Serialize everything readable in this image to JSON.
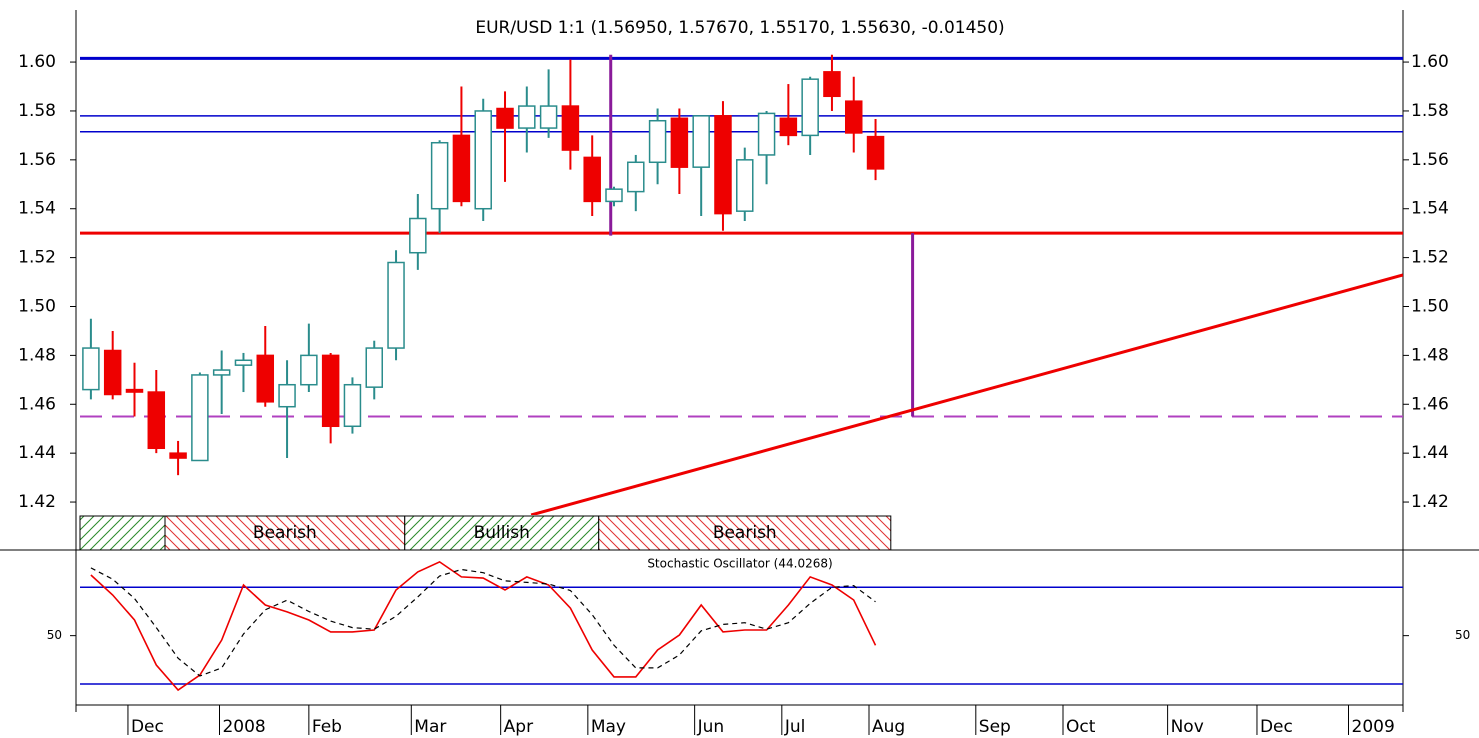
{
  "chart_data": [
    {
      "type": "candlestick",
      "title": "EUR/USD 1:1 (1.56950, 1.57670, 1.55170, 1.55630, -0.01450)",
      "open": [
        1.466,
        1.482,
        1.466,
        1.465,
        1.44,
        1.437,
        1.472,
        1.476,
        1.48,
        1.459,
        1.468,
        1.48,
        1.451,
        1.467,
        1.483,
        1.522,
        1.54,
        1.57,
        1.54,
        1.581,
        1.573,
        1.573,
        1.582,
        1.561,
        1.543,
        1.547,
        1.559,
        1.577,
        1.557,
        1.578,
        1.539,
        1.562,
        1.577,
        1.57,
        1.596,
        1.584,
        1.5695
      ],
      "high": [
        1.495,
        1.49,
        1.477,
        1.474,
        1.445,
        1.473,
        1.482,
        1.481,
        1.492,
        1.478,
        1.493,
        1.481,
        1.471,
        1.486,
        1.523,
        1.546,
        1.568,
        1.59,
        1.585,
        1.588,
        1.59,
        1.597,
        1.601,
        1.57,
        1.549,
        1.562,
        1.581,
        1.581,
        1.578,
        1.584,
        1.565,
        1.58,
        1.591,
        1.594,
        1.603,
        1.594,
        1.5767
      ],
      "low": [
        1.462,
        1.462,
        1.455,
        1.44,
        1.431,
        1.437,
        1.456,
        1.465,
        1.459,
        1.438,
        1.465,
        1.444,
        1.448,
        1.462,
        1.478,
        1.515,
        1.53,
        1.541,
        1.535,
        1.551,
        1.563,
        1.569,
        1.556,
        1.537,
        1.541,
        1.539,
        1.55,
        1.546,
        1.537,
        1.531,
        1.535,
        1.55,
        1.566,
        1.562,
        1.58,
        1.563,
        1.5517
      ],
      "close": [
        1.483,
        1.464,
        1.465,
        1.442,
        1.438,
        1.472,
        1.474,
        1.478,
        1.461,
        1.468,
        1.48,
        1.451,
        1.468,
        1.483,
        1.518,
        1.536,
        1.567,
        1.543,
        1.58,
        1.573,
        1.582,
        1.582,
        1.564,
        1.543,
        1.548,
        1.559,
        1.576,
        1.557,
        1.578,
        1.538,
        1.56,
        1.579,
        1.57,
        1.593,
        1.586,
        1.571,
        1.5563
      ],
      "up_color": "#2a8c8c",
      "down_color": "#ee0000",
      "ylim": [
        1.4147,
        1.6213
      ],
      "yticks": [
        {
          "value": 1.42,
          "label": "1.42"
        },
        {
          "value": 1.44,
          "label": "1.44"
        },
        {
          "value": 1.46,
          "label": "1.46"
        },
        {
          "value": 1.48,
          "label": "1.48"
        },
        {
          "value": 1.5,
          "label": "1.50"
        },
        {
          "value": 1.52,
          "label": "1.52"
        },
        {
          "value": 1.54,
          "label": "1.54"
        },
        {
          "value": 1.56,
          "label": "1.56"
        },
        {
          "value": 1.58,
          "label": "1.58"
        },
        {
          "value": 1.6,
          "label": "1.60"
        }
      ],
      "xlim": [
        -0.5,
        60.2
      ],
      "xticks": [
        {
          "value": 1.7,
          "label": "Dec"
        },
        {
          "value": 5.9,
          "label": "2008"
        },
        {
          "value": 10,
          "label": "Feb"
        },
        {
          "value": 14.7,
          "label": "Mar"
        },
        {
          "value": 18.8,
          "label": "Apr"
        },
        {
          "value": 22.8,
          "label": "May"
        },
        {
          "value": 27.7,
          "label": "Jun"
        },
        {
          "value": 31.7,
          "label": "Jul"
        },
        {
          "value": 35.7,
          "label": "Aug"
        },
        {
          "value": 40.6,
          "label": "Sep"
        },
        {
          "value": 44.6,
          "label": "Oct"
        },
        {
          "value": 49.4,
          "label": "Nov"
        },
        {
          "value": 53.5,
          "label": "Dec"
        },
        {
          "value": 57.7,
          "label": "2009"
        }
      ],
      "hlines": [
        {
          "value": 1.6015,
          "color": "#0000cc",
          "width": 3,
          "dash": false
        },
        {
          "value": 1.578,
          "color": "#0000cc",
          "width": 1.5,
          "dash": false
        },
        {
          "value": 1.5715,
          "color": "#0000cc",
          "width": 1.5,
          "dash": false
        },
        {
          "value": 1.53,
          "color": "#ee0000",
          "width": 3,
          "dash": false
        },
        {
          "value": 1.455,
          "color": "#b040c0",
          "width": 2,
          "dash": true
        }
      ],
      "segments": [
        {
          "x": [
            23.85,
            23.85
          ],
          "y": [
            1.603,
            1.529
          ],
          "color": "#8a1a9a"
        },
        {
          "x": [
            37.7,
            37.7
          ],
          "y": [
            1.53,
            1.455
          ],
          "color": "#8a1a9a"
        },
        {
          "x": [
            20.2,
            60.2
          ],
          "y": [
            1.4147,
            1.5129
          ],
          "color": "#ee0000"
        }
      ],
      "zones": [
        {
          "start": -0.5,
          "end": 3.4,
          "label": null,
          "kind": "bull"
        },
        {
          "start": 3.4,
          "end": 14.4,
          "label": "Bearish",
          "kind": "bear"
        },
        {
          "start": 14.4,
          "end": 23.3,
          "label": "Bullish",
          "kind": "bull"
        },
        {
          "start": 23.3,
          "end": 36.7,
          "label": "Bearish",
          "kind": "bear"
        }
      ]
    },
    {
      "type": "line",
      "title": "Stochastic Oscillator (44.0268)",
      "series": [
        {
          "color": "#ee0000",
          "dash": false,
          "values": [
            87.6,
            75.2,
            59.7,
            31.8,
            16.3,
            25.6,
            47.3,
            81.4,
            69.0,
            64.7,
            59.7,
            52.3,
            52.3,
            53.5,
            78.3,
            89.5,
            95.7,
            86.4,
            85.7,
            78.3,
            86.4,
            81.4,
            67.1,
            41.1,
            24.4,
            24.4,
            41.1,
            50.4,
            69.0,
            52.3,
            53.5,
            53.5,
            69.0,
            86.4,
            81.4,
            72.1,
            44.0268
          ]
        },
        {
          "color": "#000000",
          "dash": true,
          "values": [
            92,
            85,
            73,
            55,
            36,
            25,
            30,
            51,
            66,
            72,
            65,
            59,
            55,
            54,
            62,
            74,
            87,
            91,
            89,
            84,
            83,
            82,
            78,
            63,
            44,
            30,
            30,
            38,
            53,
            57,
            58,
            54,
            58,
            70,
            80,
            81,
            71
          ]
        }
      ],
      "ylim": [
        7,
        100
      ],
      "yticks": [
        50
      ],
      "hlines": [
        80,
        20
      ],
      "hline_color": "#0000cc"
    }
  ]
}
